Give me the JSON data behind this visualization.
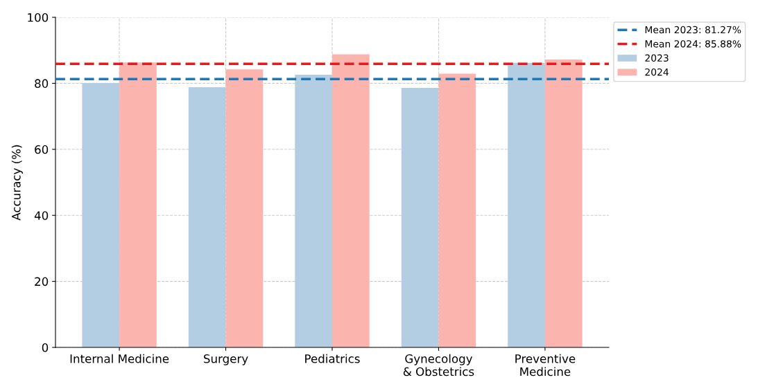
{
  "chart_data": {
    "type": "bar",
    "ylabel": "Accuracy (%)",
    "categories": [
      "Internal Medicine",
      "Surgery",
      "Pediatrics",
      "Gynecology\n& Obstetrics",
      "Preventive\nMedicine"
    ],
    "series": [
      {
        "name": "2023",
        "color": "#b3cde3",
        "values": [
          80.1,
          78.8,
          82.6,
          78.6,
          86.2
        ]
      },
      {
        "name": "2024",
        "color": "#fbb4ae",
        "values": [
          86.3,
          84.2,
          88.8,
          82.9,
          87.2
        ]
      }
    ],
    "ref_lines": [
      {
        "axis": "y",
        "value": 81.27,
        "label": "Mean 2023: 81.27%",
        "color": "#1f77b4",
        "line_style": "dashed"
      },
      {
        "axis": "y",
        "value": 85.88,
        "label": "Mean 2024: 85.88%",
        "color": "#e41a1c",
        "line_style": "dashed"
      }
    ],
    "ylim": [
      0,
      100
    ],
    "yticks": [
      0,
      20,
      40,
      60,
      80,
      100
    ],
    "grid": true,
    "legend": "top right"
  }
}
